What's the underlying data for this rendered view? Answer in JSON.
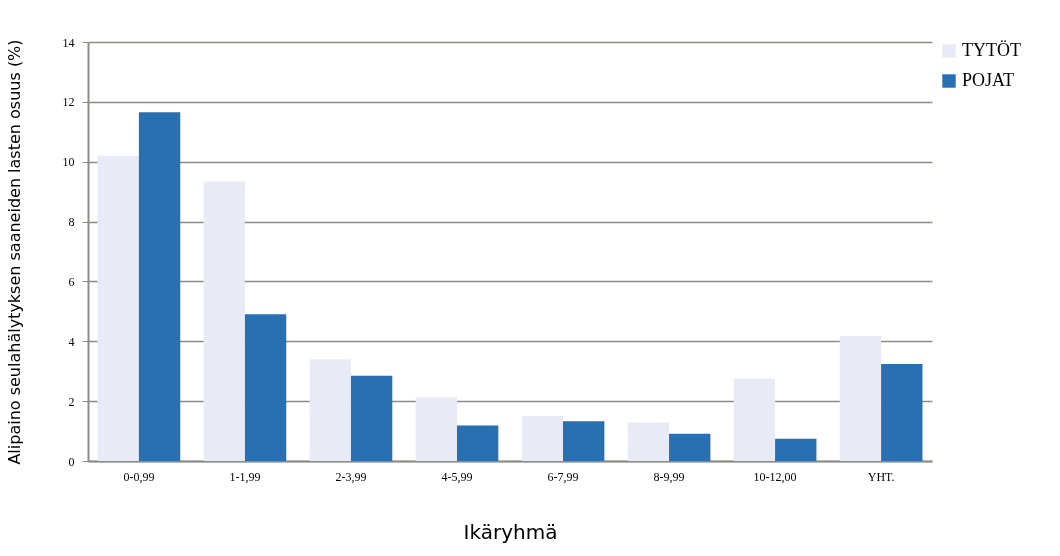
{
  "chart_data": {
    "type": "bar",
    "xlabel": "Ikäryhmä",
    "ylabel": "Alipaino seulahälytyksen saaneiden lasten osuus (%)",
    "categories": [
      "0-0,99",
      "1-1,99",
      "2-3,99",
      "4-5,99",
      "6-7,99",
      "8-9,99",
      "10-12,00",
      "YHT."
    ],
    "series": [
      {
        "name": "TYTÖT",
        "color": "#e8ebf5",
        "values": [
          10.2,
          9.34,
          3.4,
          2.13,
          1.5,
          1.29,
          2.76,
          4.18
        ]
      },
      {
        "name": "POJAT",
        "color": "#2870b2",
        "values": [
          11.65,
          4.9,
          2.85,
          1.19,
          1.33,
          0.91,
          0.74,
          3.24
        ]
      }
    ],
    "ylim": [
      0,
      14
    ],
    "yticks": [
      0,
      2,
      4,
      6,
      8,
      10,
      12,
      14
    ],
    "grid": "y",
    "legend": "right"
  }
}
